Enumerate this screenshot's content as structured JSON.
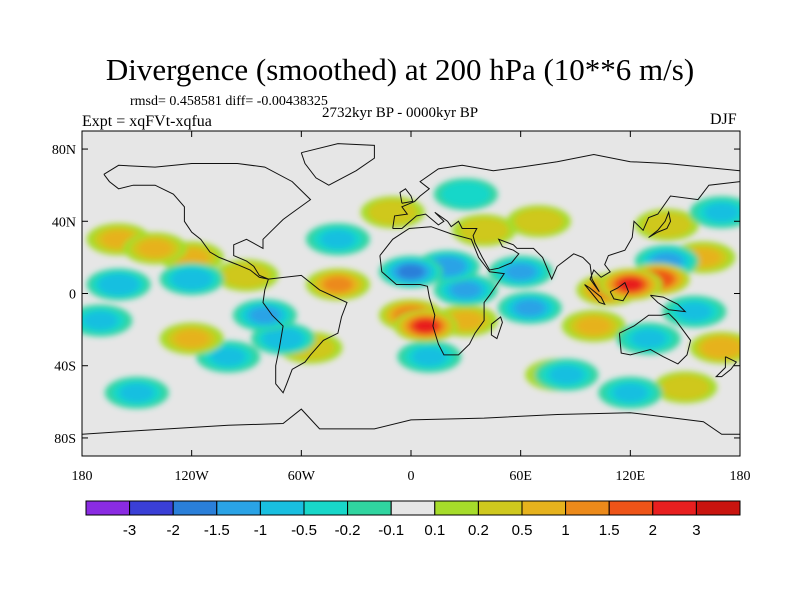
{
  "header": {
    "title": "Divergence (smoothed) at 200 hPa (10**6 m/s)",
    "stats": "rmsd= 0.458581 diff= -0.00438325",
    "period": "2732kyr BP - 0000kyr BP",
    "experiment": "Expt = xqFVt-xqfua",
    "season": "DJF"
  },
  "chart_data": {
    "type": "heatmap",
    "title": "Divergence (smoothed) at 200 hPa (10**6 m/s)",
    "variable": "200 hPa divergence difference",
    "units": "10**6 m/s",
    "x_range": [
      -180,
      180
    ],
    "y_range": [
      -90,
      90
    ],
    "x_ticks": [
      {
        "value": -180,
        "label": "180"
      },
      {
        "value": -120,
        "label": "120W"
      },
      {
        "value": -60,
        "label": "60W"
      },
      {
        "value": 0,
        "label": "0"
      },
      {
        "value": 60,
        "label": "60E"
      },
      {
        "value": 120,
        "label": "120E"
      },
      {
        "value": 180,
        "label": "180"
      }
    ],
    "y_ticks": [
      {
        "value": 80,
        "label": "80N"
      },
      {
        "value": 40,
        "label": "40N"
      },
      {
        "value": 0,
        "label": "0"
      },
      {
        "value": -40,
        "label": "40S"
      },
      {
        "value": -80,
        "label": "80S"
      }
    ],
    "colorbar": {
      "levels": [
        "-3",
        "-2",
        "-1.5",
        "-1",
        "-0.5",
        "-0.2",
        "-0.1",
        "0.1",
        "0.2",
        "0.5",
        "1",
        "1.5",
        "2",
        "3"
      ],
      "colors": [
        "#8a2be2",
        "#3a3fd6",
        "#2a7fd9",
        "#2aa3e6",
        "#19bfe0",
        "#18d7c9",
        "#30d5a0",
        "#e6e6e6",
        "#a6dc2a",
        "#cfc81e",
        "#e6b21d",
        "#ec8a1a",
        "#ee5418",
        "#e81f1f",
        "#c9140f"
      ]
    },
    "features": [
      {
        "lon": -160,
        "lat": 30,
        "value": 0.6
      },
      {
        "lon": -140,
        "lat": 25,
        "value": 0.7
      },
      {
        "lon": -120,
        "lat": 20,
        "value": 0.6
      },
      {
        "lon": -90,
        "lat": 10,
        "value": 0.4
      },
      {
        "lon": -40,
        "lat": 5,
        "value": 1.2
      },
      {
        "lon": 0,
        "lat": -12,
        "value": 1.3
      },
      {
        "lon": 8,
        "lat": -18,
        "value": 2.2
      },
      {
        "lon": 30,
        "lat": -15,
        "value": 0.7
      },
      {
        "lon": 100,
        "lat": -18,
        "value": 0.7
      },
      {
        "lon": 120,
        "lat": 5,
        "value": 2.4
      },
      {
        "lon": 135,
        "lat": 8,
        "value": 2.0
      },
      {
        "lon": 108,
        "lat": 2,
        "value": 1.4
      },
      {
        "lon": 160,
        "lat": 20,
        "value": 0.6
      },
      {
        "lon": 140,
        "lat": 38,
        "value": 0.5
      },
      {
        "lon": -120,
        "lat": -25,
        "value": 0.6
      },
      {
        "lon": -55,
        "lat": -30,
        "value": 0.5
      },
      {
        "lon": 40,
        "lat": 35,
        "value": 0.5
      },
      {
        "lon": 70,
        "lat": 40,
        "value": 0.4
      },
      {
        "lon": 170,
        "lat": -30,
        "value": 0.8
      },
      {
        "lon": -10,
        "lat": 45,
        "value": 0.4
      },
      {
        "lon": 80,
        "lat": -45,
        "value": 0.4
      },
      {
        "lon": 150,
        "lat": -52,
        "value": 0.4
      },
      {
        "lon": 0,
        "lat": 12,
        "value": -1.6
      },
      {
        "lon": 20,
        "lat": 15,
        "value": -1.3
      },
      {
        "lon": 60,
        "lat": 12,
        "value": -1.0
      },
      {
        "lon": 140,
        "lat": 18,
        "value": -1.1
      },
      {
        "lon": -120,
        "lat": 8,
        "value": -0.8
      },
      {
        "lon": -160,
        "lat": 5,
        "value": -0.8
      },
      {
        "lon": -80,
        "lat": -12,
        "value": -1.1
      },
      {
        "lon": -70,
        "lat": -25,
        "value": -0.8
      },
      {
        "lon": 30,
        "lat": 2,
        "value": -1.0
      },
      {
        "lon": 65,
        "lat": -8,
        "value": -1.2
      },
      {
        "lon": 10,
        "lat": -35,
        "value": -0.7
      },
      {
        "lon": 85,
        "lat": -45,
        "value": -0.7
      },
      {
        "lon": 120,
        "lat": -55,
        "value": -0.5
      },
      {
        "lon": -150,
        "lat": -55,
        "value": -0.5
      },
      {
        "lon": 130,
        "lat": -25,
        "value": -0.7
      },
      {
        "lon": -100,
        "lat": -35,
        "value": -0.5
      },
      {
        "lon": -40,
        "lat": 30,
        "value": -0.5
      },
      {
        "lon": 30,
        "lat": 55,
        "value": -0.4
      },
      {
        "lon": 170,
        "lat": 45,
        "value": -0.5
      },
      {
        "lon": -170,
        "lat": -15,
        "value": -0.5
      },
      {
        "lon": 155,
        "lat": -10,
        "value": -0.6
      }
    ]
  }
}
